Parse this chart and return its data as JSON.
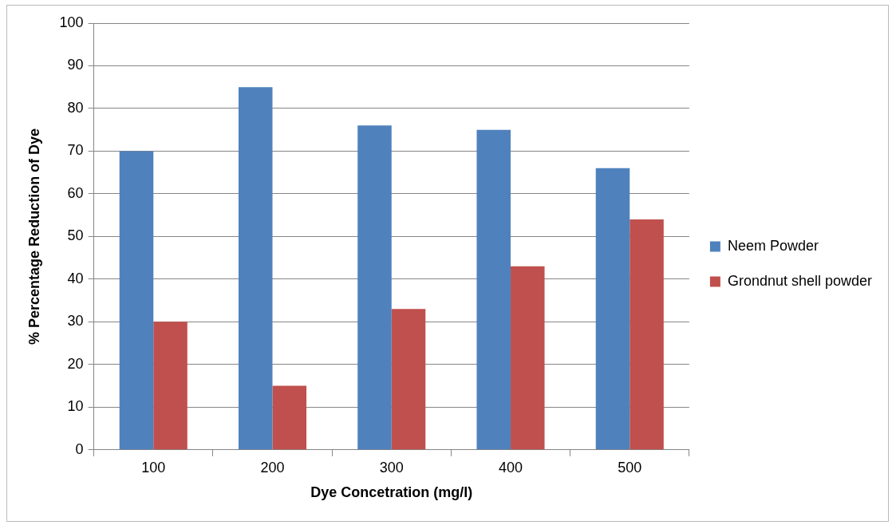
{
  "chart_data": {
    "type": "bar",
    "xlabel": "Dye Concetration (mg/l)",
    "ylabel": "% Percentage Reduction of Dye",
    "categories": [
      "100",
      "200",
      "300",
      "400",
      "500"
    ],
    "series": [
      {
        "name": "Neem Powder",
        "color": "#4f81bd",
        "values": [
          70,
          85,
          76,
          75,
          66
        ]
      },
      {
        "name": "Grondnut shell powder",
        "color": "#c0504d",
        "values": [
          30,
          15,
          33,
          43,
          54
        ]
      }
    ],
    "ylim": [
      0,
      100
    ],
    "yticks": [
      0,
      10,
      20,
      30,
      40,
      50,
      60,
      70,
      80,
      90,
      100
    ],
    "grid": "y",
    "legend": "right"
  }
}
